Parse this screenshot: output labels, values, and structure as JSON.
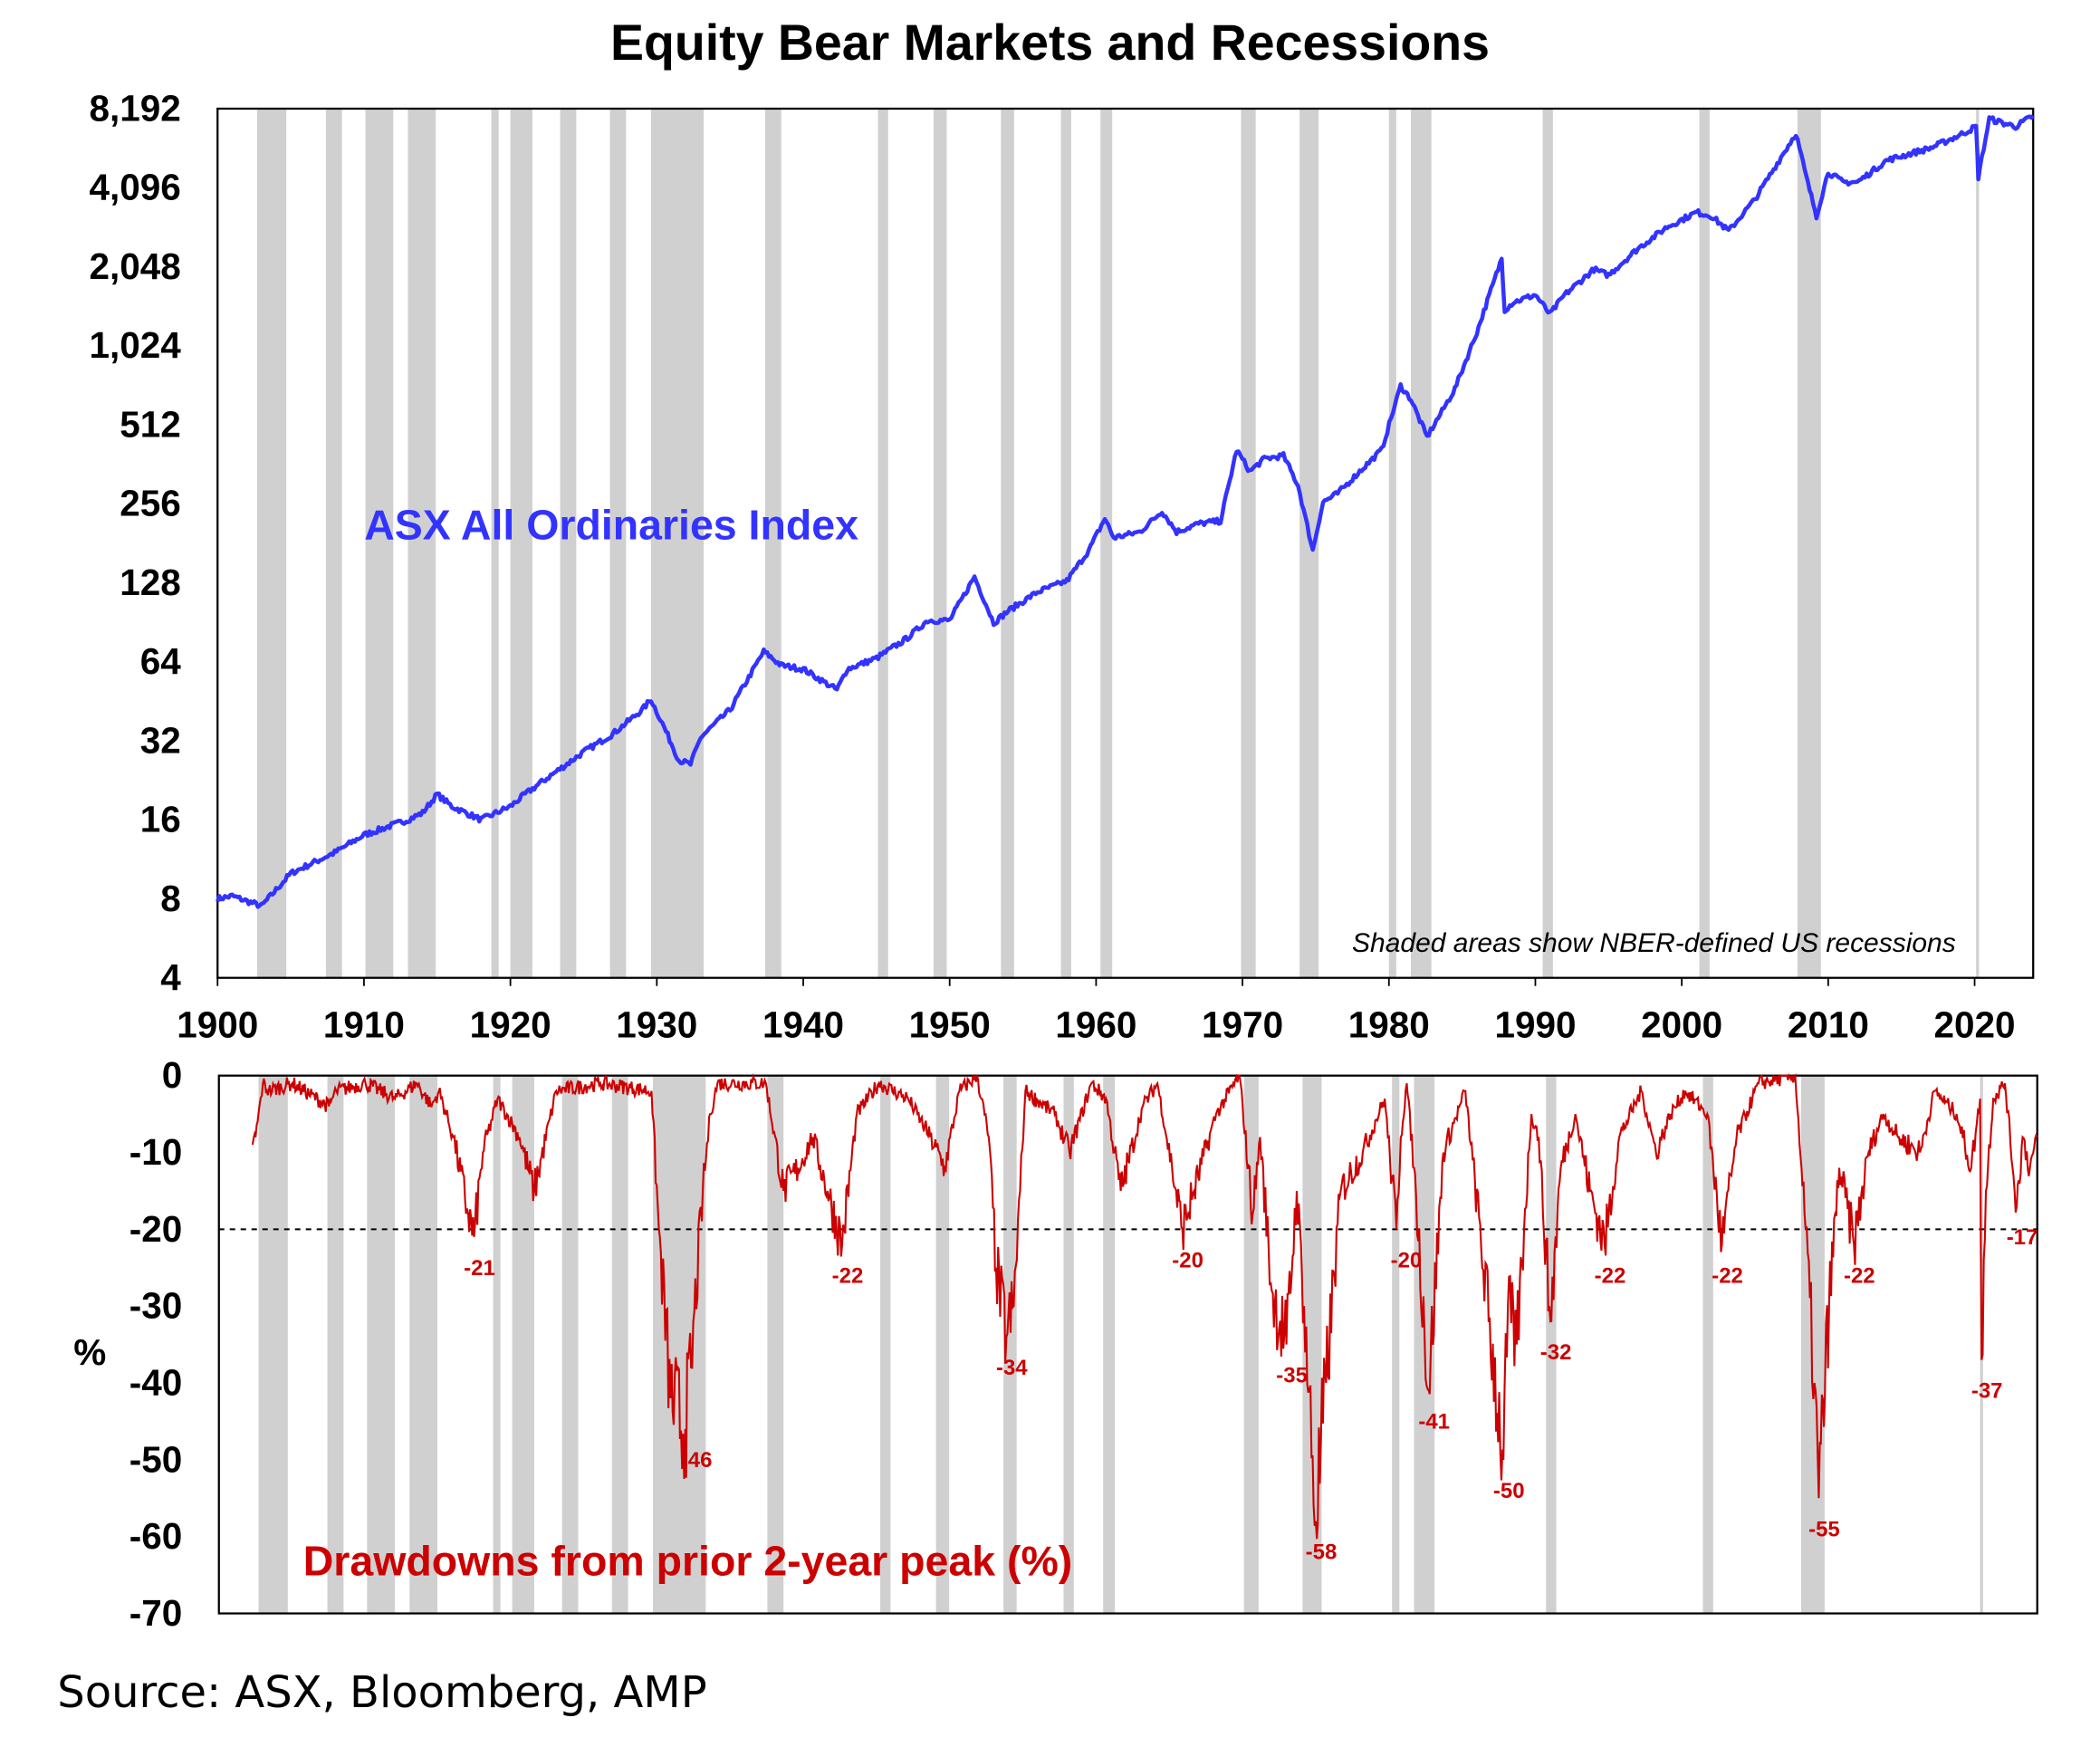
{
  "chart_data": [
    {
      "type": "line",
      "title": "Equity Bear Markets and Recessions",
      "series_label": "ASX All Ordinaries Index",
      "note": "Shaded areas show NBER-defined US recessions",
      "yscale": "log2",
      "ylim": [
        4,
        8192
      ],
      "xlim": [
        1900,
        2024
      ],
      "yticks": [
        "4",
        "8",
        "16",
        "32",
        "64",
        "128",
        "256",
        "512",
        "1,024",
        "2,048",
        "4,096",
        "8,192"
      ],
      "ytick_values": [
        4,
        8,
        16,
        32,
        64,
        128,
        256,
        512,
        1024,
        2048,
        4096,
        8192
      ],
      "xticks": [
        "1900",
        "1910",
        "1920",
        "1930",
        "1940",
        "1950",
        "1960",
        "1970",
        "1980",
        "1990",
        "2000",
        "2010",
        "2020"
      ],
      "color": "#3333ff",
      "x": [
        1900,
        1901,
        1903,
        1905,
        1908,
        1910,
        1913,
        1914,
        1915,
        1916,
        1918,
        1920,
        1921,
        1922,
        1925,
        1927,
        1929,
        1929.6,
        1930.5,
        1931.5,
        1932.3,
        1933,
        1935,
        1937.3,
        1938.5,
        1940,
        1942.3,
        1943,
        1945,
        1947,
        1948.5,
        1950,
        1951.7,
        1953,
        1954,
        1956,
        1958,
        1959.5,
        1960.6,
        1961.2,
        1963,
        1964.5,
        1965.5,
        1967,
        1968.5,
        1969.6,
        1970.5,
        1971.5,
        1972.8,
        1973.8,
        1974.8,
        1975.5,
        1976.5,
        1978,
        1979.5,
        1980.8,
        1981.5,
        1982.6,
        1983.5,
        1984.5,
        1986,
        1987.7,
        1987.9,
        1988.5,
        1990,
        1991,
        1992,
        1994,
        1995,
        1997,
        1999,
        2001,
        2002,
        2003.2,
        2005,
        2007.8,
        2008.5,
        2009.2,
        2010,
        2011,
        2012,
        2014,
        2015,
        2017,
        2019,
        2020.1,
        2020.25,
        2021,
        2022,
        2022.8,
        2024
      ],
      "values": [
        8,
        8.2,
        7.5,
        10,
        12,
        14,
        16,
        17,
        20,
        18,
        16,
        18,
        20,
        22,
        29,
        34,
        42,
        46,
        36,
        27,
        26,
        33,
        42,
        70,
        62,
        60,
        50,
        60,
        66,
        78,
        92,
        92,
        135,
        90,
        100,
        118,
        130,
        170,
        225,
        190,
        200,
        240,
        200,
        215,
        220,
        410,
        340,
        380,
        390,
        300,
        170,
        260,
        280,
        340,
        410,
        720,
        640,
        460,
        560,
        700,
        1150,
        2200,
        1400,
        1500,
        1600,
        1350,
        1600,
        2000,
        1900,
        2400,
        2900,
        3300,
        3200,
        2800,
        3700,
        6600,
        4500,
        3200,
        4700,
        4300,
        4300,
        5200,
        5400,
        5800,
        6500,
        7000,
        4500,
        7500,
        7200,
        7000,
        7700
      ]
    },
    {
      "type": "line",
      "series_label": "Drawdowns from prior 2-year peak (%)",
      "ylabel": "%",
      "ylim": [
        -70,
        0
      ],
      "yticks": [
        "0",
        "-10",
        "-20",
        "-30",
        "-40",
        "-50",
        "-60",
        "-70"
      ],
      "ytick_values": [
        0,
        -10,
        -20,
        -30,
        -40,
        -50,
        -60,
        -70
      ],
      "threshold": -20,
      "color": "#cc0000",
      "x": [
        1902.3,
        1902.5,
        1903,
        1903.4,
        1905,
        1907.5,
        1908,
        1910,
        1912,
        1913.5,
        1914.5,
        1915,
        1916,
        1917,
        1917.4,
        1918,
        1919,
        1920.5,
        1921.5,
        1923,
        1926,
        1929.5,
        1930,
        1930.8,
        1931.8,
        1932.2,
        1933,
        1933.5,
        1934,
        1937.3,
        1938.5,
        1939.5,
        1940.5,
        1941.5,
        1942.5,
        1943.5,
        1945,
        1947,
        1948.5,
        1949.5,
        1950.5,
        1951.7,
        1952.5,
        1953,
        1953.7,
        1954.2,
        1955,
        1957,
        1958,
        1959.5,
        1960.5,
        1961.5,
        1963,
        1964,
        1965,
        1965.7,
        1966.5,
        1968,
        1969.6,
        1970.5,
        1971,
        1971.8,
        1972.8,
        1973.5,
        1974,
        1974.8,
        1975.5,
        1976.5,
        1978,
        1979.5,
        1980.3,
        1980.6,
        1981,
        1981.5,
        1982.5,
        1983.5,
        1985,
        1987.6,
        1987.9,
        1988.5,
        1989,
        1989.5,
        1990,
        1990.8,
        1991.5,
        1992.5,
        1993.5,
        1994.5,
        1995.5,
        1997,
        1998,
        1999,
        2000,
        2001.5,
        2002.5,
        2003.5,
        2005,
        2007.5,
        2008.2,
        2008.8,
        2009.1,
        2009.8,
        2010.5,
        2011.5,
        2012.5,
        2013.5,
        2014.5,
        2016,
        2017,
        2018.5,
        2019.5,
        2020.1,
        2020.2,
        2020.5,
        2021,
        2021.8,
        2022.6,
        2023,
        2023.5,
        2024
      ],
      "values": [
        -9,
        -8,
        -1,
        -2,
        -1,
        -4,
        -2,
        -1,
        -3,
        -1,
        -4,
        -2,
        -8,
        -18,
        -21,
        -10,
        -3,
        -8,
        -15,
        -2,
        -1,
        -2,
        -20,
        -42,
        -46,
        -38,
        -15,
        -5,
        -1,
        -1,
        -15,
        -12,
        -8,
        -15,
        -22,
        -5,
        -1,
        -3,
        -8,
        -12,
        -2,
        0,
        -8,
        -25,
        -34,
        -30,
        -2,
        -5,
        -10,
        -1,
        -3,
        -15,
        -4,
        -1,
        -12,
        -20,
        -15,
        -5,
        0,
        -18,
        -8,
        -28,
        -35,
        -15,
        -30,
        -58,
        -40,
        -15,
        -10,
        -3,
        -20,
        -8,
        -1,
        -12,
        -41,
        -10,
        -2,
        -50,
        -30,
        -35,
        -20,
        -5,
        -8,
        -32,
        -12,
        -5,
        -15,
        -22,
        -8,
        -2,
        -10,
        -5,
        -2,
        -5,
        -22,
        -8,
        -1,
        0,
        -20,
        -40,
        -55,
        -30,
        -12,
        -22,
        -10,
        -5,
        -8,
        -10,
        -2,
        -5,
        -12,
        -3,
        -37,
        -15,
        -3,
        -1,
        -17,
        -8,
        -12,
        -8
      ],
      "trough_labels": [
        {
          "x": 1917.4,
          "y": -21,
          "label": "-21"
        },
        {
          "x": 1932.2,
          "y": -46,
          "label": "-46"
        },
        {
          "x": 1942.5,
          "y": -22,
          "label": "-22"
        },
        {
          "x": 1953.7,
          "y": -34,
          "label": "-34"
        },
        {
          "x": 1965.7,
          "y": -20,
          "label": "-20"
        },
        {
          "x": 1972.8,
          "y": -35,
          "label": "-35"
        },
        {
          "x": 1974.8,
          "y": -58,
          "label": "-58"
        },
        {
          "x": 1980.6,
          "y": -20,
          "label": "-20"
        },
        {
          "x": 1982.5,
          "y": -41,
          "label": "-41"
        },
        {
          "x": 1987.6,
          "y": -50,
          "label": "-50"
        },
        {
          "x": 1990.8,
          "y": -32,
          "label": "-32"
        },
        {
          "x": 1994.5,
          "y": -22,
          "label": "-22"
        },
        {
          "x": 2002.5,
          "y": -22,
          "label": "-22"
        },
        {
          "x": 2009.1,
          "y": -55,
          "label": "-55"
        },
        {
          "x": 2011.5,
          "y": -22,
          "label": "-22"
        },
        {
          "x": 2020.2,
          "y": -37,
          "label": "-37"
        },
        {
          "x": 2022.6,
          "y": -17,
          "label": "-17"
        }
      ]
    }
  ],
  "recessions": [
    [
      1902.7,
      1904.7
    ],
    [
      1907.4,
      1908.5
    ],
    [
      1910.1,
      1912.0
    ],
    [
      1913.0,
      1914.9
    ],
    [
      1918.7,
      1919.2
    ],
    [
      1920.0,
      1921.5
    ],
    [
      1923.4,
      1924.5
    ],
    [
      1926.8,
      1927.9
    ],
    [
      1929.6,
      1933.2
    ],
    [
      1937.4,
      1938.5
    ],
    [
      1945.1,
      1945.8
    ],
    [
      1948.9,
      1949.8
    ],
    [
      1953.5,
      1954.4
    ],
    [
      1957.6,
      1958.3
    ],
    [
      1960.3,
      1961.1
    ],
    [
      1969.9,
      1970.9
    ],
    [
      1973.9,
      1975.2
    ],
    [
      1980.0,
      1980.5
    ],
    [
      1981.5,
      1982.9
    ],
    [
      1990.5,
      1991.2
    ],
    [
      2001.2,
      2001.9
    ],
    [
      2007.9,
      2009.5
    ],
    [
      2020.1,
      2020.3
    ]
  ],
  "recession_color": "#d0d0d0",
  "source": "Source: ASX, Bloomberg, AMP"
}
